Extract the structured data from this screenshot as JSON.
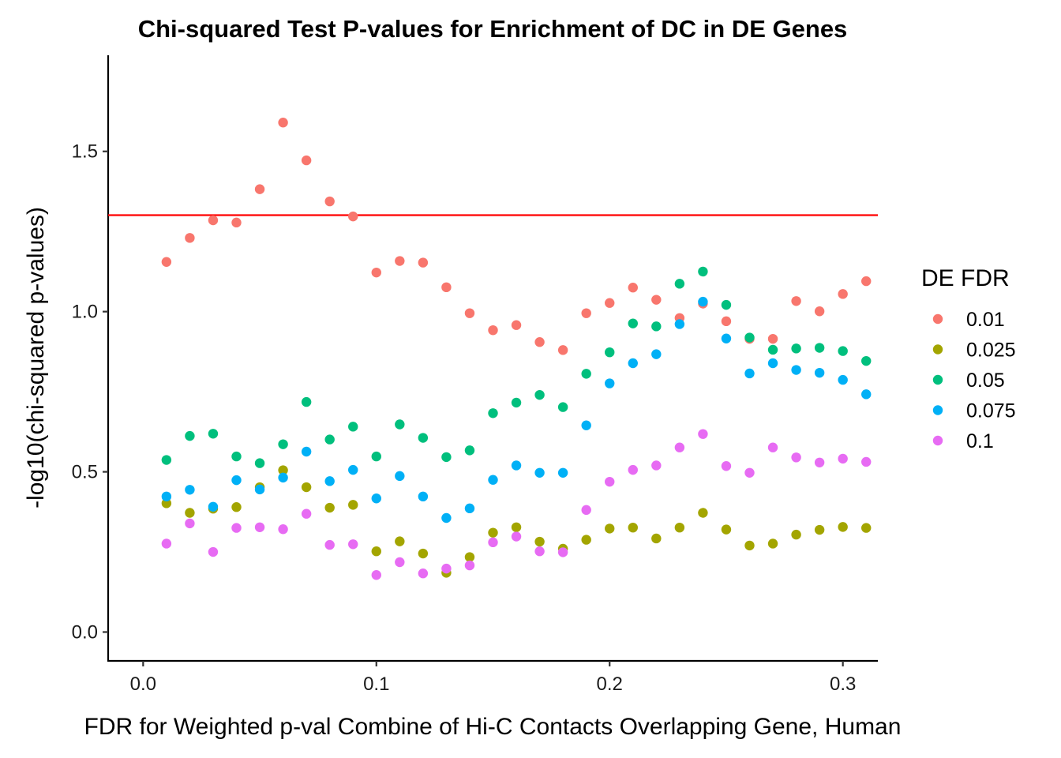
{
  "chart_data": {
    "type": "scatter",
    "title": "Chi-squared Test P-values for Enrichment of DC in DE Genes",
    "xlabel": "FDR for Weighted p-val Combine of Hi-C Contacts Overlapping Gene, Human",
    "ylabel": "-log10(chi-squared p-values)",
    "xlim": [
      -0.015,
      0.315
    ],
    "ylim": [
      -0.09,
      1.8
    ],
    "x_ticks": [
      "0.0",
      "0.1",
      "0.2",
      "0.3"
    ],
    "x_tick_values": [
      0.0,
      0.1,
      0.2,
      0.3
    ],
    "y_ticks": [
      "0.0",
      "0.5",
      "1.0",
      "1.5"
    ],
    "y_tick_values": [
      0.0,
      0.5,
      1.0,
      1.5
    ],
    "grid": false,
    "reference_line": {
      "y": 1.301,
      "color": "#ff0000"
    },
    "legend": {
      "title": "DE FDR",
      "position": "right"
    },
    "x": [
      0.01,
      0.02,
      0.03,
      0.04,
      0.05,
      0.06,
      0.07,
      0.08,
      0.09,
      0.1,
      0.11,
      0.12,
      0.13,
      0.14,
      0.15,
      0.16,
      0.17,
      0.18,
      0.19,
      0.2,
      0.21,
      0.22,
      0.23,
      0.24,
      0.25,
      0.26,
      0.27,
      0.28,
      0.29,
      0.3,
      0.31
    ],
    "series": [
      {
        "name": "0.01",
        "color": "#F8766D",
        "values": [
          1.155,
          1.23,
          1.285,
          1.278,
          1.382,
          1.59,
          1.472,
          1.344,
          1.297,
          1.122,
          1.158,
          1.153,
          1.076,
          0.995,
          0.942,
          0.958,
          0.905,
          0.88,
          0.995,
          1.027,
          1.075,
          1.037,
          0.98,
          1.025,
          0.97,
          0.915,
          0.915,
          1.033,
          1.001,
          1.055,
          1.095
        ]
      },
      {
        "name": "0.025",
        "color": "#A3A500",
        "values": [
          0.402,
          0.372,
          0.385,
          0.39,
          0.452,
          0.505,
          0.452,
          0.388,
          0.397,
          0.252,
          0.283,
          0.245,
          0.185,
          0.234,
          0.31,
          0.327,
          0.282,
          0.26,
          0.288,
          0.323,
          0.326,
          0.292,
          0.326,
          0.372,
          0.32,
          0.27,
          0.276,
          0.304,
          0.319,
          0.328,
          0.325
        ]
      },
      {
        "name": "0.05",
        "color": "#00BF7D",
        "values": [
          0.537,
          0.612,
          0.619,
          0.548,
          0.527,
          0.586,
          0.718,
          0.601,
          0.641,
          0.548,
          0.648,
          0.606,
          0.546,
          0.567,
          0.683,
          0.716,
          0.74,
          0.702,
          0.806,
          0.873,
          0.963,
          0.954,
          1.087,
          1.125,
          1.021,
          0.919,
          0.881,
          0.885,
          0.887,
          0.877,
          0.846
        ]
      },
      {
        "name": "0.075",
        "color": "#00B0F6",
        "values": [
          0.423,
          0.444,
          0.391,
          0.474,
          0.445,
          0.482,
          0.563,
          0.471,
          0.506,
          0.417,
          0.487,
          0.423,
          0.356,
          0.386,
          0.475,
          0.52,
          0.497,
          0.497,
          0.645,
          0.776,
          0.839,
          0.867,
          0.961,
          1.031,
          0.916,
          0.807,
          0.839,
          0.818,
          0.809,
          0.787,
          0.742
        ]
      },
      {
        "name": "0.1",
        "color": "#E76BF3",
        "values": [
          0.276,
          0.339,
          0.25,
          0.325,
          0.327,
          0.321,
          0.369,
          0.272,
          0.274,
          0.178,
          0.218,
          0.183,
          0.198,
          0.208,
          0.28,
          0.298,
          0.252,
          0.249,
          0.381,
          0.469,
          0.506,
          0.52,
          0.576,
          0.618,
          0.518,
          0.497,
          0.576,
          0.545,
          0.529,
          0.541,
          0.531
        ]
      }
    ]
  }
}
